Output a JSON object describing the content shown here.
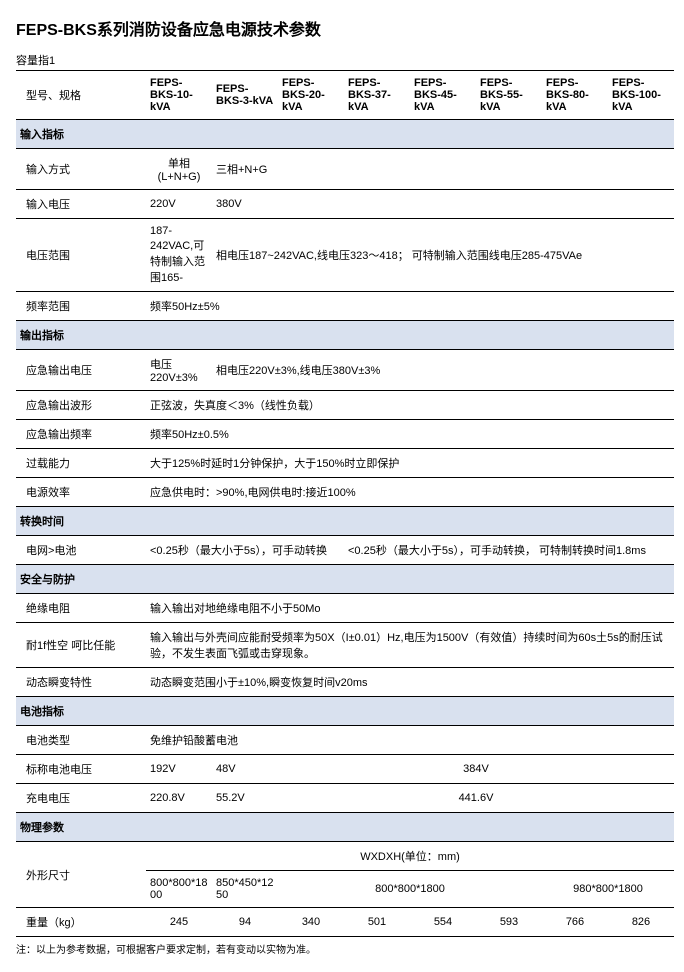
{
  "page": {
    "title": "FEPS-BKS系列消防设备应急电源技术参数",
    "subtitle": "容量指1",
    "note": "注：以上为参考数据，可根据客户要求定制，若有变动以实物为准。"
  },
  "headers": {
    "model_label": "型号、规格",
    "models": [
      "FEPS-BKS-10-kVA",
      "FEPS-BKS-3-kVA",
      "FEPS-BKS-20-kVA",
      "FEPS-BKS-37-kVA",
      "FEPS-BKS-45-kVA",
      "FEPS-BKS-55-kVA",
      "FEPS-BKS-80-kVA",
      "FEPS-BKS-100-kVA"
    ]
  },
  "sections": {
    "input": "输入指标",
    "output": "输出指标",
    "switch": "转换时间",
    "safety": "安全与防护",
    "battery": "电池指标",
    "physical": "物理参数"
  },
  "rows": {
    "input_mode": {
      "label": "输入方式",
      "c1": "单相 (L+N+G)",
      "rest": "三相+N+G"
    },
    "input_voltage": {
      "label": "输入电压",
      "c1": "220V",
      "rest": "380V"
    },
    "voltage_range": {
      "label": "电压范围",
      "c1": "187-242VAC,可特制输入范围165-",
      "rest": "相电压187~242VAC,线电压323～418； 可特制输入范围线电压285-475VAe"
    },
    "freq_range": {
      "label": "频率范围",
      "full": "频率50Hz±5%"
    },
    "out_voltage": {
      "label": "应急输出电压",
      "c1": "电压220V±3%",
      "rest": "相电压220V±3%,线电压380V±3%"
    },
    "out_waveform": {
      "label": "应急输出波形",
      "full": "正弦波，失真度＜3%（线性负载）"
    },
    "out_freq": {
      "label": "应急输出频率",
      "full": "频率50Hz±0.5%"
    },
    "overload": {
      "label": "过载能力",
      "full": "大于125%时延时1分钟保护，大于150%时立即保护"
    },
    "efficiency": {
      "label": "电源效率",
      "full": "应急供电时：>90%,电网供电时:接近100%"
    },
    "grid_bat": {
      "label": "电网>电池",
      "left": "<0.25秒（最大小于5s），可手动转换",
      "right": "<0.25秒（最大小于5s），可手动转换， 可特制转换时间1.8ms"
    },
    "insulation": {
      "label": "绝缘电阻",
      "full": "输入输出对地绝缘电阻不小于50Mo"
    },
    "dielectric": {
      "label": "耐1f性空\n呵比任能",
      "full": "输入输出与外壳间应能耐受频率为50X（I±0.01）Hz,电压为1500V（有效值）持续时间为60s土5s的耐压试验，不发生表面飞弧或击穿现象。"
    },
    "transient": {
      "label": "动态瞬变特性",
      "full": "动态瞬变范围小于±10%,瞬变恢复时间v20ms"
    },
    "bat_type": {
      "label": "电池类型",
      "full": "免维护铅酸蓄电池"
    },
    "bat_nominal": {
      "label": "标称电池电压",
      "c1": "192V",
      "c2": "48V",
      "rest": "384V"
    },
    "bat_charge": {
      "label": "充电电压",
      "c1": "220.8V",
      "c2": "55.2V",
      "rest": "441.6V"
    },
    "dim_header": {
      "full": "WXDXH(单位：mm)"
    },
    "dimensions": {
      "label": "外形尺寸",
      "c1": "800*800*1800",
      "c2": "850*450*1250",
      "mid": "800*800*1800",
      "right": "980*800*1800"
    },
    "weight": {
      "label": "重量（kg）",
      "vals": [
        "245",
        "94",
        "340",
        "501",
        "554",
        "593",
        "766",
        "826"
      ]
    }
  }
}
